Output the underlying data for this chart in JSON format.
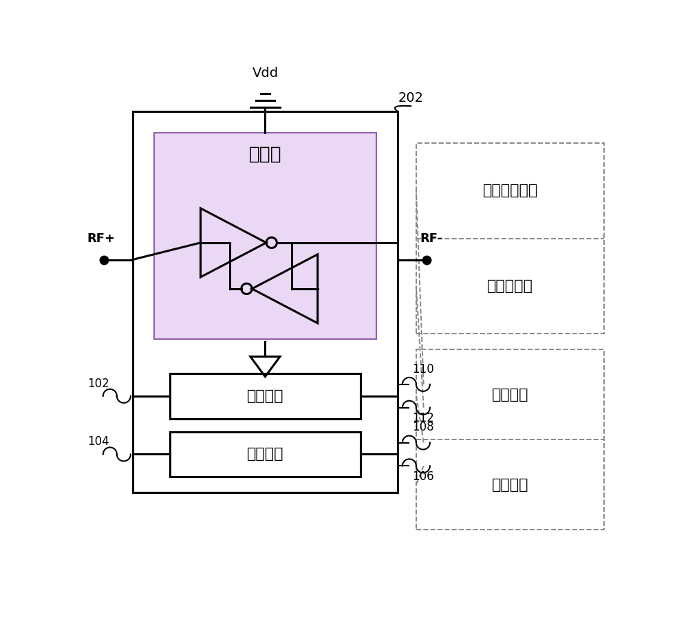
{
  "bg_color": "#ffffff",
  "line_color": "#000000",
  "dashed_color": "#888888",
  "amp_fill": "#ead8f5",
  "amp_edge": "#9060b0",
  "label_202": "202",
  "label_vdd": "Vdd",
  "label_rfp": "RF+",
  "label_rfm": "RF-",
  "label_102": "102",
  "label_104": "104",
  "label_110": "110",
  "label_112": "112",
  "label_108": "108",
  "label_106": "106",
  "label_amplifier": "放大器",
  "label_cap_circuit": "电容电路",
  "label_ind_circuit": "电感电路",
  "label_cap_branch": "电容分支电路",
  "label_init_circuit": "初始化电路",
  "label_ind_element": "电感元件",
  "label_switch_circuit": "开关电路"
}
